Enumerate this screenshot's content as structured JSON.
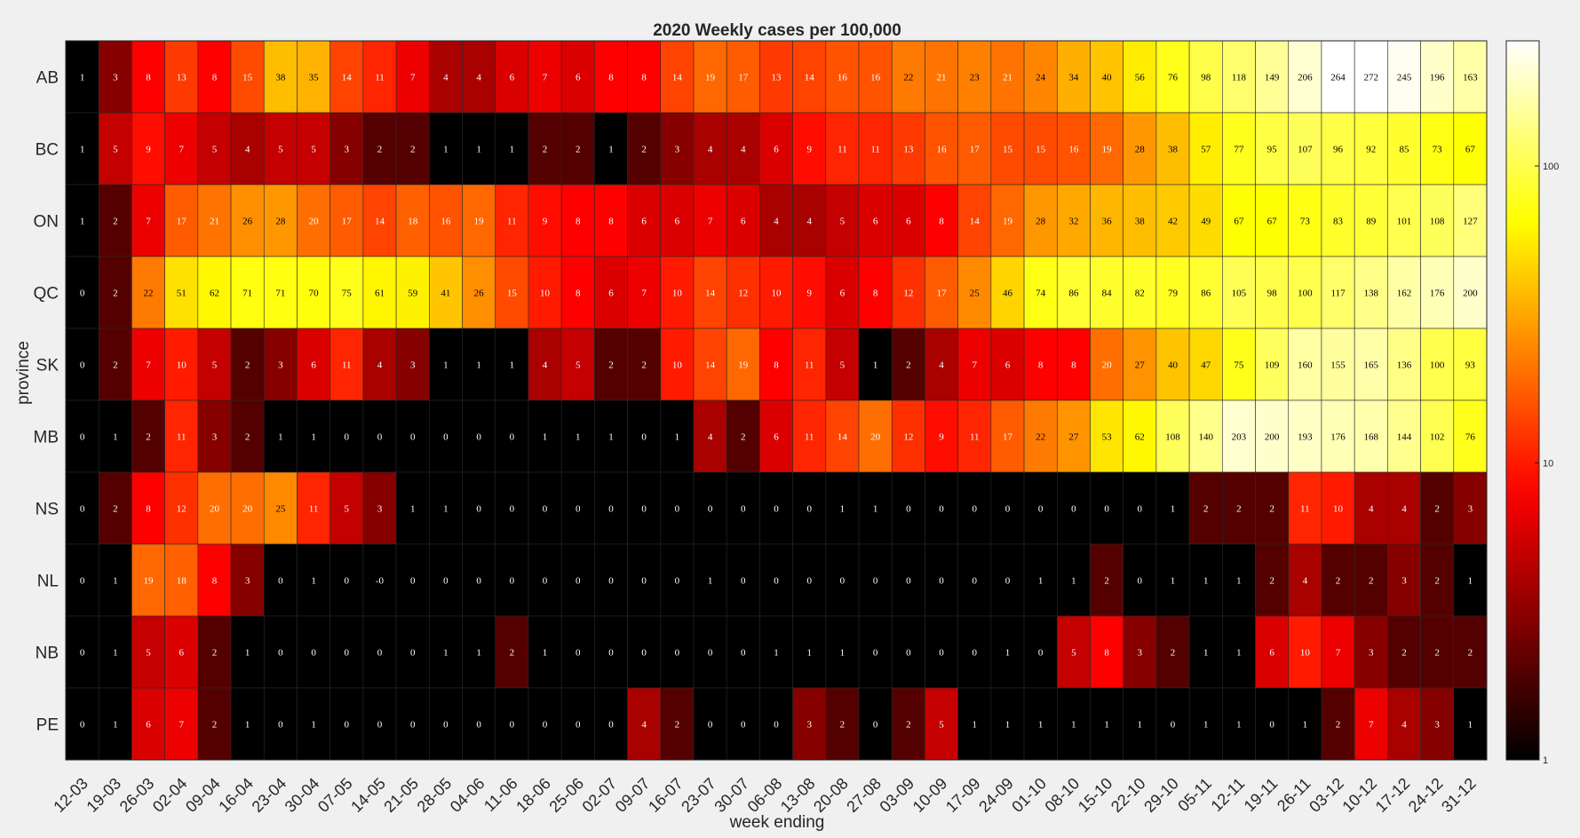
{
  "chart_data": {
    "type": "heatmap",
    "title": "2020 Weekly cases per 100,000",
    "xlabel": "week ending",
    "ylabel": "province",
    "color_scale": "log",
    "colormap": "hot",
    "clim": [
      1,
      264
    ],
    "colorbar_ticks": [
      "1",
      "10",
      "100"
    ],
    "rows": [
      "AB",
      "BC",
      "ON",
      "QC",
      "SK",
      "MB",
      "NS",
      "NL",
      "NB",
      "PE"
    ],
    "columns": [
      "12-03",
      "19-03",
      "26-03",
      "02-04",
      "09-04",
      "16-04",
      "23-04",
      "30-04",
      "07-05",
      "14-05",
      "21-05",
      "28-05",
      "04-06",
      "11-06",
      "18-06",
      "25-06",
      "02-07",
      "09-07",
      "16-07",
      "23-07",
      "30-07",
      "06-08",
      "13-08",
      "20-08",
      "27-08",
      "03-09",
      "10-09",
      "17-09",
      "24-09",
      "01-10",
      "08-10",
      "15-10",
      "22-10",
      "29-10",
      "05-11",
      "12-11",
      "19-11",
      "26-11",
      "03-12",
      "10-12",
      "17-12",
      "24-12",
      "31-12"
    ],
    "values": [
      [
        "1",
        "3",
        "8",
        "13",
        "8",
        "15",
        "38",
        "35",
        "14",
        "11",
        "7",
        "4",
        "4",
        "6",
        "7",
        "6",
        "8",
        "8",
        "14",
        "19",
        "17",
        "13",
        "14",
        "16",
        "16",
        "22",
        "21",
        "23",
        "21",
        "24",
        "34",
        "40",
        "56",
        "76",
        "98",
        "118",
        "149",
        "206",
        "264",
        "272",
        "245",
        "196",
        "163"
      ],
      [
        "1",
        "5",
        "9",
        "7",
        "5",
        "4",
        "5",
        "5",
        "3",
        "2",
        "2",
        "1",
        "1",
        "1",
        "2",
        "2",
        "1",
        "2",
        "3",
        "4",
        "4",
        "6",
        "9",
        "11",
        "11",
        "13",
        "16",
        "17",
        "15",
        "15",
        "16",
        "19",
        "28",
        "38",
        "57",
        "77",
        "95",
        "107",
        "96",
        "92",
        "85",
        "73",
        "67"
      ],
      [
        "1",
        "2",
        "7",
        "17",
        "21",
        "26",
        "28",
        "20",
        "17",
        "14",
        "18",
        "16",
        "19",
        "11",
        "9",
        "8",
        "8",
        "6",
        "6",
        "7",
        "6",
        "4",
        "4",
        "5",
        "6",
        "6",
        "8",
        "14",
        "19",
        "28",
        "32",
        "36",
        "38",
        "42",
        "49",
        "67",
        "67",
        "73",
        "83",
        "89",
        "101",
        "108",
        "127"
      ],
      [
        "0",
        "2",
        "22",
        "51",
        "62",
        "71",
        "71",
        "70",
        "75",
        "61",
        "59",
        "41",
        "26",
        "15",
        "10",
        "8",
        "6",
        "7",
        "10",
        "14",
        "12",
        "10",
        "9",
        "6",
        "8",
        "12",
        "17",
        "25",
        "46",
        "74",
        "86",
        "84",
        "82",
        "79",
        "86",
        "105",
        "98",
        "100",
        "117",
        "138",
        "162",
        "176",
        "200"
      ],
      [
        "0",
        "2",
        "7",
        "10",
        "5",
        "2",
        "3",
        "6",
        "11",
        "4",
        "3",
        "1",
        "1",
        "1",
        "4",
        "5",
        "2",
        "2",
        "10",
        "14",
        "19",
        "8",
        "11",
        "5",
        "1",
        "2",
        "4",
        "7",
        "6",
        "8",
        "8",
        "20",
        "27",
        "40",
        "47",
        "75",
        "109",
        "160",
        "155",
        "165",
        "136",
        "100",
        "93"
      ],
      [
        "0",
        "1",
        "2",
        "11",
        "3",
        "2",
        "1",
        "1",
        "0",
        "0",
        "0",
        "0",
        "0",
        "0",
        "1",
        "1",
        "1",
        "0",
        "1",
        "4",
        "2",
        "6",
        "11",
        "14",
        "20",
        "12",
        "9",
        "11",
        "17",
        "22",
        "27",
        "53",
        "62",
        "108",
        "140",
        "203",
        "200",
        "193",
        "176",
        "168",
        "144",
        "102",
        "76"
      ],
      [
        "0",
        "2",
        "8",
        "12",
        "20",
        "20",
        "25",
        "11",
        "5",
        "3",
        "1",
        "1",
        "0",
        "0",
        "0",
        "0",
        "0",
        "0",
        "0",
        "0",
        "0",
        "0",
        "0",
        "1",
        "1",
        "0",
        "0",
        "0",
        "0",
        "0",
        "0",
        "0",
        "0",
        "1",
        "2",
        "2",
        "2",
        "11",
        "10",
        "4",
        "4",
        "2",
        "3"
      ],
      [
        "0",
        "1",
        "19",
        "18",
        "8",
        "3",
        "0",
        "1",
        "0",
        "-0",
        "0",
        "0",
        "0",
        "0",
        "0",
        "0",
        "0",
        "0",
        "0",
        "1",
        "0",
        "0",
        "0",
        "0",
        "0",
        "0",
        "0",
        "0",
        "0",
        "1",
        "1",
        "2",
        "0",
        "1",
        "1",
        "1",
        "2",
        "4",
        "2",
        "2",
        "3",
        "2",
        "1"
      ],
      [
        "0",
        "1",
        "5",
        "6",
        "2",
        "1",
        "0",
        "0",
        "0",
        "0",
        "0",
        "1",
        "1",
        "2",
        "1",
        "0",
        "0",
        "0",
        "0",
        "0",
        "0",
        "1",
        "1",
        "1",
        "0",
        "0",
        "0",
        "0",
        "1",
        "0",
        "5",
        "8",
        "3",
        "2",
        "1",
        "1",
        "6",
        "10",
        "7",
        "3",
        "2",
        "2",
        "2"
      ],
      [
        "0",
        "1",
        "6",
        "7",
        "2",
        "1",
        "0",
        "1",
        "0",
        "0",
        "0",
        "0",
        "0",
        "0",
        "0",
        "0",
        "0",
        "4",
        "2",
        "0",
        "0",
        "0",
        "3",
        "2",
        "0",
        "2",
        "5",
        "1",
        "1",
        "1",
        "1",
        "1",
        "1",
        "0",
        "1",
        "1",
        "0",
        "1",
        "2",
        "7",
        "4",
        "3",
        "1"
      ]
    ]
  }
}
